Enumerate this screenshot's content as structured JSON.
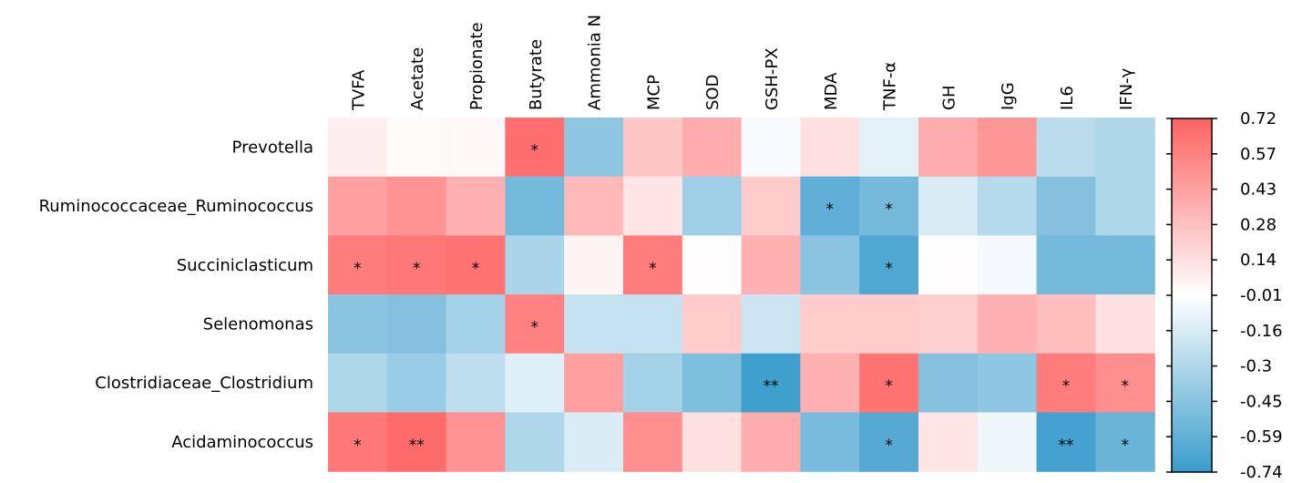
{
  "chart_data": {
    "type": "heatmap",
    "columns": [
      "TVFA",
      "Acetate",
      "Propionate",
      "Butyrate",
      "Ammonia N",
      "MCP",
      "SOD",
      "GSH-PX",
      "MDA",
      "TNF-α",
      "GH",
      "IgG",
      "IL6",
      "IFN-γ"
    ],
    "rows": [
      "Prevotella",
      "Ruminococcaceae_Ruminococcus",
      "Succiniclasticum",
      "Selenomonas",
      "Clostridiaceae_Clostridium",
      "Acidaminococcus"
    ],
    "values": [
      [
        0.08,
        0.02,
        0.03,
        0.66,
        -0.42,
        0.26,
        0.38,
        -0.03,
        0.14,
        -0.1,
        0.38,
        0.48,
        -0.26,
        -0.3
      ],
      [
        0.44,
        0.5,
        0.36,
        -0.52,
        0.32,
        0.12,
        -0.36,
        0.24,
        -0.6,
        -0.52,
        -0.14,
        -0.28,
        -0.46,
        -0.3
      ],
      [
        0.6,
        0.62,
        0.64,
        -0.32,
        0.05,
        0.6,
        0.01,
        0.36,
        -0.44,
        -0.66,
        0.01,
        -0.04,
        -0.52,
        -0.52
      ],
      [
        -0.44,
        -0.46,
        -0.34,
        0.58,
        -0.22,
        -0.22,
        0.24,
        -0.2,
        0.24,
        0.24,
        0.22,
        0.36,
        0.3,
        0.14
      ],
      [
        -0.3,
        -0.38,
        -0.24,
        -0.12,
        0.44,
        -0.34,
        -0.48,
        -0.72,
        0.36,
        0.64,
        -0.46,
        -0.42,
        0.6,
        0.52
      ],
      [
        0.62,
        0.68,
        0.5,
        -0.3,
        -0.14,
        0.52,
        0.14,
        0.38,
        -0.5,
        -0.64,
        0.12,
        -0.06,
        -0.7,
        -0.56
      ]
    ],
    "significance": [
      [
        "",
        "",
        "",
        "*",
        "",
        "",
        "",
        "",
        "",
        "",
        "",
        "",
        "",
        ""
      ],
      [
        "",
        "",
        "",
        "",
        "",
        "",
        "",
        "",
        "*",
        "*",
        "",
        "",
        "",
        ""
      ],
      [
        "*",
        "*",
        "*",
        "",
        "",
        "*",
        "",
        "",
        "",
        "*",
        "",
        "",
        "",
        ""
      ],
      [
        "",
        "",
        "",
        "*",
        "",
        "",
        "",
        "",
        "",
        "",
        "",
        "",
        "",
        ""
      ],
      [
        "",
        "",
        "",
        "",
        "",
        "",
        "",
        "**",
        "",
        "*",
        "",
        "",
        "*",
        "*"
      ],
      [
        "*",
        "**",
        "",
        "",
        "",
        "",
        "",
        "",
        "",
        "*",
        "",
        "",
        "**",
        "*"
      ]
    ],
    "colorbar": {
      "range": [
        -0.74,
        0.72
      ],
      "tick_labels": [
        "0.72",
        "0.57",
        "0.43",
        "0.28",
        "0.14",
        "-0.01",
        "-0.16",
        "-0.3",
        "-0.45",
        "-0.59",
        "-0.74"
      ],
      "colors": {
        "low": "#3a9ccc",
        "mid": "#ffffff",
        "high": "#ff6262"
      }
    }
  }
}
